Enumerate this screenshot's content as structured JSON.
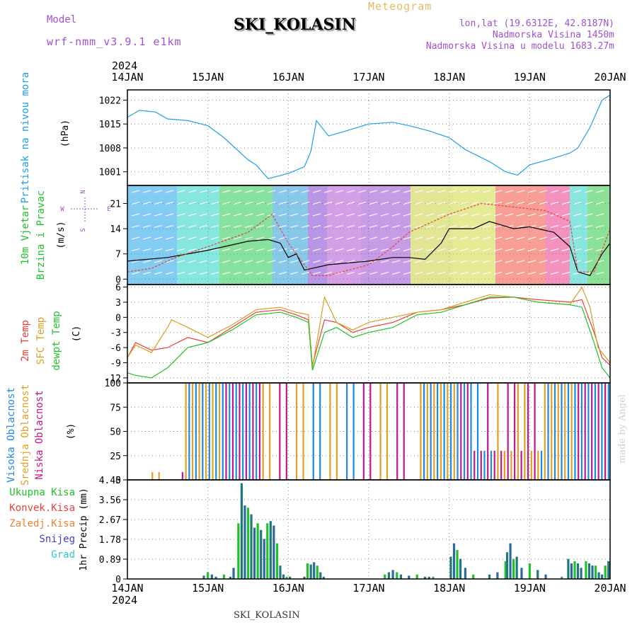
{
  "header": {
    "model_label": "Model",
    "model_name": "wrf-nmm_v3.9.1 e1km",
    "title": "SKI_KOLASIN",
    "meteogram_label": "Meteogram",
    "lonlat": "lon,lat (19.6312E, 42.8187N)",
    "elevation": "Nadmorska Visina 1450m",
    "elevation_model": "Nadmorska Visina u modelu 1683.27m",
    "year_top": "2024",
    "year_bottom": "2024",
    "footer_station": "SKI_KOLASIN",
    "credit": "made by Angel"
  },
  "colors": {
    "pressure": "#1ea0e6",
    "temp2m": "#e8403a",
    "sfc": "#d8a020",
    "dewpt": "#22c02a",
    "high_cloud": "#1e88e5",
    "mid_cloud": "#e0a020",
    "low_cloud": "#c0188e",
    "header_purple": "#a050d0",
    "meteogram": "#e8b860"
  },
  "chart_data": {
    "x_tick_labels": [
      "14JAN",
      "15JAN",
      "16JAN",
      "17JAN",
      "18JAN",
      "19JAN",
      "20JAN"
    ],
    "x_range_days": [
      0,
      6
    ],
    "panels": [
      {
        "id": "pressure",
        "type": "line",
        "ylabel_lines": [
          "Pritisak na nivou mora"
        ],
        "unit": "(hPa)",
        "ticks": [
          "1001",
          "1008",
          "1015",
          "1022"
        ],
        "ylim": [
          997,
          1025
        ],
        "series": [
          {
            "x": [
              0,
              0.15,
              0.35,
              0.5,
              0.75,
              1.0,
              1.2,
              1.5,
              1.6,
              1.75,
              2.0,
              2.2,
              2.28,
              2.35,
              2.5,
              2.65,
              3.0,
              3.3,
              3.5,
              3.75,
              4.0,
              4.2,
              4.5,
              4.7,
              4.85,
              5.0,
              5.3,
              5.5,
              5.6,
              5.75,
              5.9,
              6.0
            ],
            "y": [
              1017,
              1019,
              1018.5,
              1016.5,
              1016,
              1014.5,
              1011,
              1004.5,
              1003,
              999,
              1000.5,
              1002.5,
              1007,
              1016,
              1011.5,
              1012.5,
              1015,
              1015.5,
              1014.5,
              1013,
              1011,
              1007.5,
              1004,
              1001,
              1000,
              1003,
              1005,
              1006.5,
              1008,
              1014,
              1022,
              1023.5
            ]
          }
        ]
      },
      {
        "id": "wind",
        "type": "line",
        "ylabel_lines": [
          "10m Vjetar",
          "Brzina i Pravac"
        ],
        "unit": "(m/s)",
        "compass": {
          "n": "N",
          "s": "S",
          "w": "W",
          "e": "E"
        },
        "ticks": [
          "0",
          "7",
          "14",
          "21"
        ],
        "ylim": [
          -1.5,
          26
        ],
        "series": [
          {
            "name": "speed",
            "x": [
              0,
              0.5,
              1.0,
              1.5,
              1.75,
              1.9,
              2.0,
              2.1,
              2.2,
              2.3,
              2.5,
              3.0,
              3.3,
              3.5,
              3.7,
              3.9,
              4.0,
              4.3,
              4.5,
              4.8,
              5.0,
              5.3,
              5.5,
              5.6,
              5.75,
              5.9,
              6.0
            ],
            "y": [
              5,
              6,
              8,
              10.5,
              11,
              10,
              6,
              7,
              2.5,
              3,
              4,
              5,
              6,
              6,
              5.5,
              10,
              14,
              14,
              16,
              14,
              14.5,
              13,
              9,
              2,
              1,
              7,
              10
            ]
          },
          {
            "name": "gust",
            "x": [
              0,
              0.3,
              0.6,
              1.0,
              1.5,
              1.8,
              2.0,
              2.2,
              2.3,
              2.5,
              3.0,
              3.3,
              3.5,
              3.8,
              4.0,
              4.4,
              4.8,
              5.2,
              5.5,
              5.6,
              5.8,
              6.0
            ],
            "y": [
              2,
              3,
              6,
              9,
              13,
              18,
              10,
              4,
              1,
              1,
              4,
              9,
              13,
              16,
              18,
              21,
              20,
              19,
              16,
              2,
              2,
              14
            ]
          }
        ]
      },
      {
        "id": "temperature",
        "type": "line",
        "ylabel_lines": [
          "2m Temp",
          "SFC Temp",
          "dewpt Temp"
        ],
        "unit": "(C)",
        "ticks": [
          "-12",
          "-9",
          "-6",
          "-3",
          "0",
          "3",
          "6"
        ],
        "ylim": [
          -13,
          6.5
        ],
        "series": [
          {
            "name": "2m Temp",
            "x": [
              0,
              0.1,
              0.3,
              0.5,
              0.75,
              1.0,
              1.3,
              1.6,
              1.9,
              2.1,
              2.25,
              2.3,
              2.45,
              2.6,
              2.8,
              3.0,
              3.3,
              3.6,
              3.9,
              4.2,
              4.5,
              4.8,
              5.1,
              5.5,
              5.65,
              5.8,
              5.9,
              6.0
            ],
            "y": [
              -8,
              -5,
              -6.5,
              -6,
              -4,
              -5,
              -2,
              1,
              1.5,
              0.5,
              -0.5,
              -9.5,
              -0.5,
              -1,
              -3,
              -2,
              -1,
              1,
              1.5,
              2.5,
              3.8,
              4,
              3.5,
              3,
              3.5,
              -3,
              -8,
              -9.5
            ]
          },
          {
            "name": "SFC Temp",
            "x": [
              0,
              0.1,
              0.3,
              0.5,
              0.55,
              0.75,
              1.0,
              1.3,
              1.6,
              1.9,
              2.1,
              2.25,
              2.3,
              2.45,
              2.6,
              2.8,
              3.0,
              3.3,
              3.6,
              3.9,
              4.2,
              4.5,
              4.8,
              5.1,
              5.5,
              5.65,
              5.75,
              5.85,
              6.0
            ],
            "y": [
              -8,
              -5.5,
              -7,
              -2,
              -0.5,
              -2,
              -4,
              -1.5,
              1.5,
              2,
              1,
              0.5,
              -10,
              4,
              -1,
              -2.5,
              -1,
              0,
              1,
              1.5,
              3,
              4.5,
              4,
              3,
              2.5,
              6,
              2,
              -6,
              -9
            ]
          },
          {
            "name": "dewpt Temp",
            "x": [
              0,
              0.1,
              0.3,
              0.5,
              0.75,
              1.0,
              1.3,
              1.6,
              1.9,
              2.1,
              2.25,
              2.3,
              2.45,
              2.6,
              2.8,
              3.0,
              3.3,
              3.6,
              3.9,
              4.2,
              4.5,
              4.8,
              5.1,
              5.5,
              5.65,
              5.8,
              5.9,
              6.0
            ],
            "y": [
              -11,
              -11.5,
              -12,
              -10,
              -6,
              -5,
              -2.5,
              0.5,
              1,
              0,
              -1,
              -10.5,
              -3,
              -2,
              -4,
              -3,
              -2,
              0.5,
              1,
              2.5,
              4,
              4,
              3,
              2.5,
              2,
              -5,
              -10,
              -12
            ]
          }
        ]
      },
      {
        "id": "cloud",
        "type": "bar",
        "ylabel_lines": [
          "Visoka Oblacnost",
          "Srednja Oblacnost",
          "Niska Oblacnost"
        ],
        "unit": "(%)",
        "ticks": [
          "0",
          "25",
          "50",
          "75",
          "100"
        ],
        "ylim": [
          0,
          100
        ]
      },
      {
        "id": "precip",
        "type": "bar",
        "ylabel_lines": [
          "1hr Precip (mm)"
        ],
        "legend": [
          "Ukupna Kisa",
          "Konvek.Kisa",
          "Zaledj.Kisa",
          "Snijeg",
          "Grad"
        ],
        "ticks": [
          "0",
          "0.89",
          "1.78",
          "2.67",
          "3.56",
          "4.45"
        ],
        "ylim": [
          0,
          4.45
        ],
        "bars": {
          "x": [
            0.95,
            1.0,
            1.05,
            1.1,
            1.2,
            1.28,
            1.32,
            1.38,
            1.42,
            1.46,
            1.5,
            1.54,
            1.58,
            1.62,
            1.66,
            1.7,
            1.74,
            1.78,
            1.82,
            1.86,
            1.9,
            1.94,
            1.98,
            2.02,
            2.2,
            2.24,
            2.28,
            2.32,
            2.36,
            2.4,
            2.44,
            3.2,
            3.25,
            3.3,
            3.35,
            3.4,
            3.5,
            3.6,
            3.7,
            3.75,
            3.8,
            4.02,
            4.06,
            4.1,
            4.14,
            4.2,
            4.3,
            4.5,
            4.6,
            4.7,
            4.72,
            4.76,
            4.8,
            4.84,
            4.9,
            5.0,
            5.1,
            5.2,
            5.4,
            5.48,
            5.52,
            5.56,
            5.6,
            5.64,
            5.7,
            5.74,
            5.78,
            5.82,
            5.86,
            5.9,
            5.94,
            5.98
          ],
          "y": [
            0.15,
            0.3,
            0.2,
            0.1,
            0.2,
            0.1,
            0.5,
            2.5,
            4.3,
            3.3,
            3.2,
            2.9,
            2.3,
            2.5,
            2.2,
            1.8,
            2.5,
            2.6,
            2.4,
            1.6,
            0.6,
            0.2,
            0.1,
            0.1,
            0.1,
            0.7,
            0.65,
            0.75,
            0.6,
            0.3,
            0.1,
            0.2,
            0.3,
            0.4,
            0.3,
            0.2,
            0.15,
            0.2,
            0.1,
            0.1,
            0.1,
            1.0,
            1.6,
            1.3,
            0.9,
            0.5,
            0.2,
            0.2,
            0.3,
            0.8,
            1.2,
            1.6,
            0.9,
            1.0,
            0.5,
            0.7,
            0.4,
            0.2,
            0.1,
            0.9,
            0.7,
            0.8,
            0.7,
            0.5,
            0.8,
            0.7,
            0.6,
            0.6,
            0.3,
            0.2,
            0.6,
            0.8
          ]
        }
      }
    ]
  }
}
